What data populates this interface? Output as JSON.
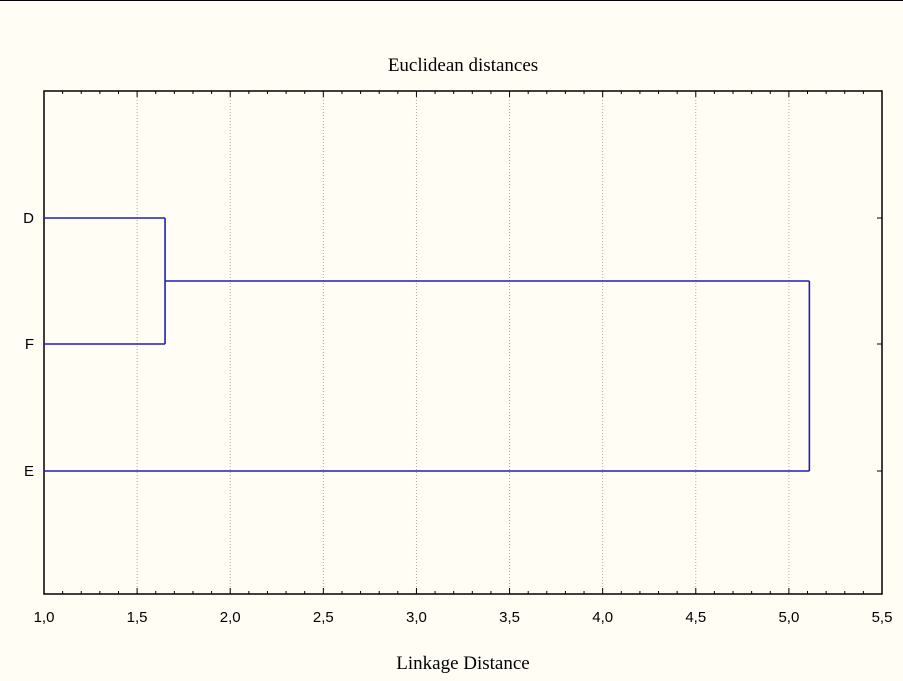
{
  "chart_data": {
    "type": "dendrogram",
    "title": "Euclidean distances",
    "xlabel": "Linkage Distance",
    "ylabel": "",
    "xlim": [
      1.0,
      5.5
    ],
    "x_ticks": [
      "1,0",
      "1,5",
      "2,0",
      "2,5",
      "3,0",
      "3,5",
      "4,0",
      "4,5",
      "5,0",
      "5,5"
    ],
    "x_tick_values": [
      1.0,
      1.5,
      2.0,
      2.5,
      3.0,
      3.5,
      4.0,
      4.5,
      5.0,
      5.5
    ],
    "leaves": [
      "D",
      "F",
      "E"
    ],
    "merges": [
      {
        "items": [
          "D",
          "F"
        ],
        "distance": 1.65
      },
      {
        "items": [
          "D+F",
          "E"
        ],
        "distance": 5.11
      }
    ],
    "grid": true,
    "line_color": "#1f1fb5"
  }
}
